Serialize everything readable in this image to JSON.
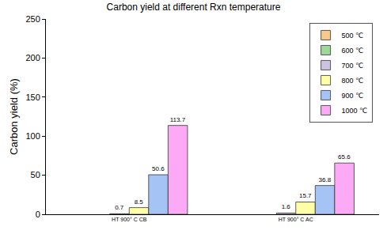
{
  "chart_data": {
    "type": "bar",
    "title": "Carbon yield at different Rxn temperature",
    "y_label": "Carbon yield (%)",
    "categories": [
      "HT 900° C CB",
      "HT 900° C AC"
    ],
    "series": [
      {
        "name": "500 ℃",
        "color": "#f8c98c",
        "values": [
          null,
          null
        ]
      },
      {
        "name": "600 ℃",
        "color": "#9fd89b",
        "values": [
          null,
          null
        ]
      },
      {
        "name": "700 ℃",
        "color": "#cdc2e2",
        "values": [
          0.7,
          1.6
        ]
      },
      {
        "name": "800 ℃",
        "color": "#ffffa8",
        "values": [
          8.5,
          15.7
        ]
      },
      {
        "name": "900 ℃",
        "color": "#a6c3f5",
        "values": [
          50.6,
          36.8
        ]
      },
      {
        "name": "1000 ℃",
        "color": "#fcaaf5",
        "values": [
          113.7,
          65.6
        ]
      }
    ],
    "ylim": [
      0,
      250
    ],
    "yticks": [
      0,
      50,
      100,
      150,
      200,
      250
    ],
    "grid": false,
    "legend": "upper right",
    "data_labels": true
  }
}
